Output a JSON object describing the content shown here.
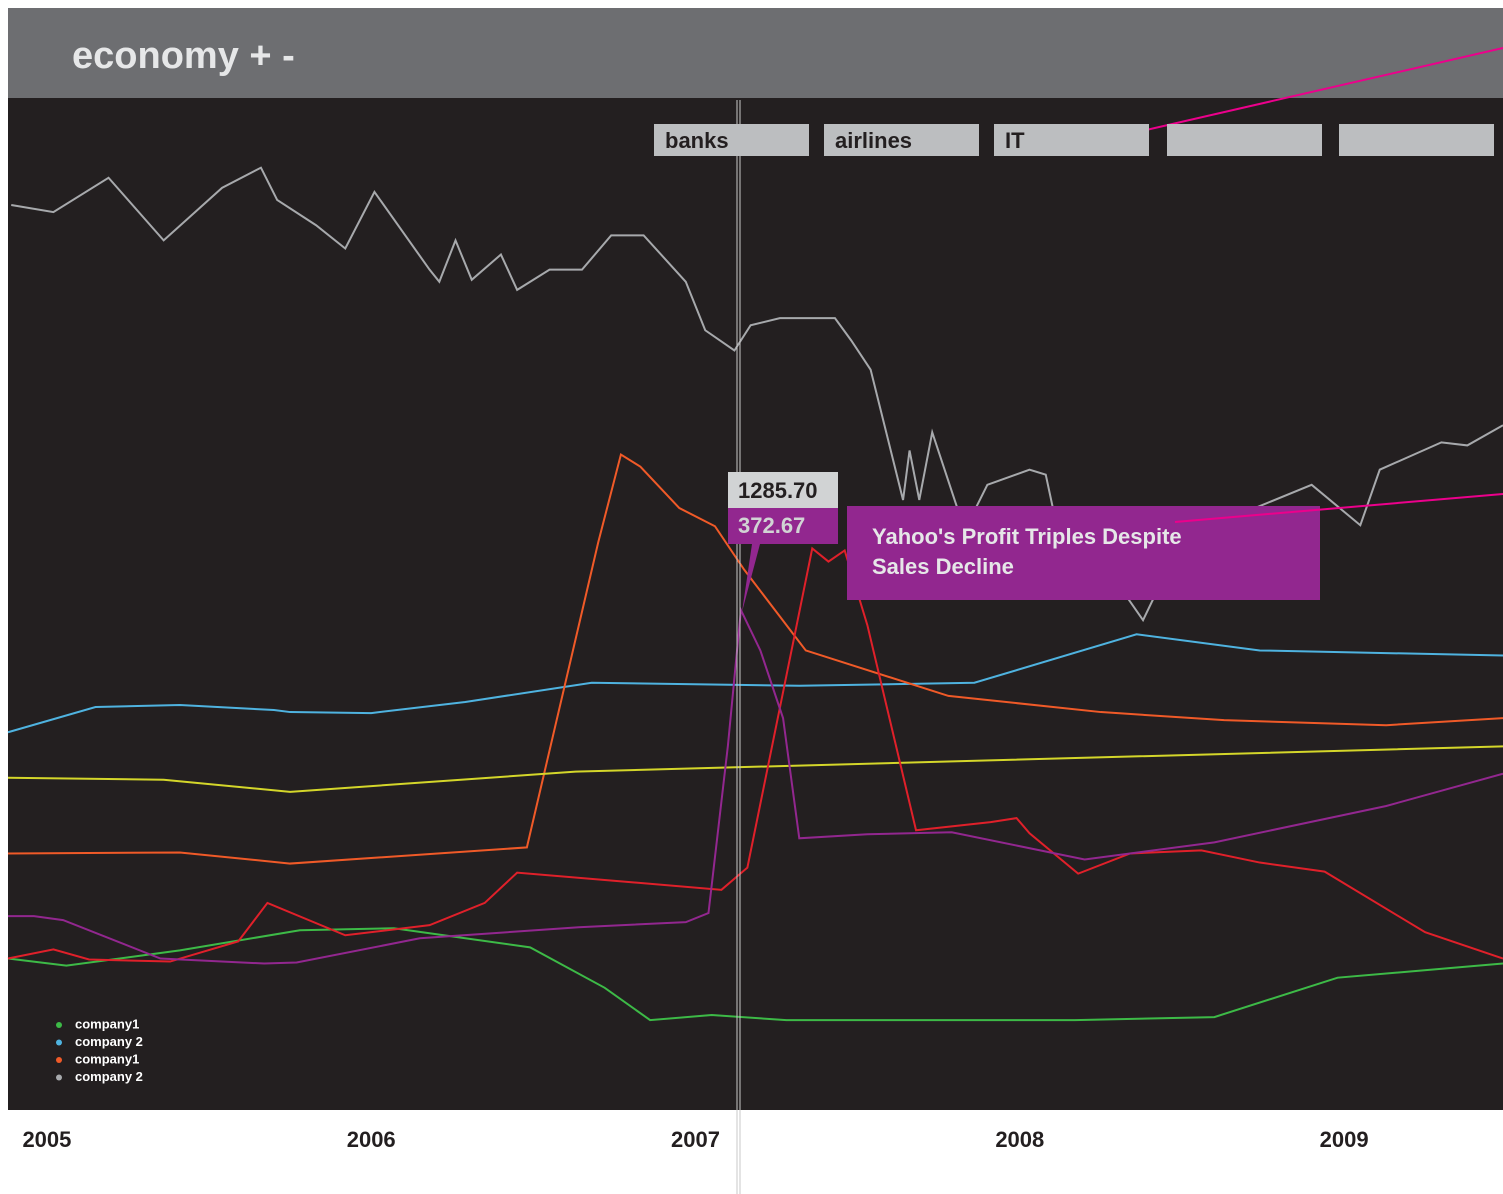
{
  "header": {
    "title": "economy + -"
  },
  "tabs": [
    "banks",
    "airlines",
    "IT",
    "",
    ""
  ],
  "readouts": [
    "1285.70",
    "372.67"
  ],
  "chart_data": {
    "type": "line",
    "annotations": [
      "Yahoo's Profit Triples Despite Sales Decline"
    ],
    "xlim": [
      2004.88,
      2009.49
    ],
    "xticks": [
      2005,
      2006,
      2007,
      2008,
      2009
    ],
    "ylim": [
      0,
      100
    ],
    "grid": false,
    "legend": "bottom-left",
    "series": [
      {
        "name": "company1",
        "color": "#3dba47",
        "x": [
          2004.88,
          2005.06,
          2005.41,
          2005.78,
          2006.07,
          2006.49,
          2006.72,
          2006.86,
          2007.05,
          2007.28,
          2008.17,
          2008.6,
          2008.98,
          2009.49
        ],
        "values": [
          15.0,
          14.3,
          15.8,
          17.8,
          18.0,
          16.1,
          12.1,
          8.9,
          9.4,
          8.9,
          8.9,
          9.2,
          13.1,
          14.5
        ]
      },
      {
        "name": "company 2",
        "color": "#4fb3e0",
        "x": [
          2004.88,
          2005.15,
          2005.41,
          2005.7,
          2005.75,
          2006.0,
          2006.29,
          2006.68,
          2007.32,
          2007.86,
          2008.36,
          2008.74,
          2009.49
        ],
        "values": [
          37.4,
          39.9,
          40.1,
          39.6,
          39.4,
          39.3,
          40.4,
          42.3,
          42.0,
          42.3,
          47.1,
          45.5,
          45.0
        ]
      },
      {
        "name": "company1",
        "color": "#f05a28",
        "x": [
          2004.88,
          2005.41,
          2005.75,
          2006.48,
          2006.7,
          2006.77,
          2006.83,
          2006.95,
          2007.06,
          2007.15,
          2007.34,
          2007.78,
          2008.25,
          2008.63,
          2009.13,
          2009.49
        ],
        "values": [
          25.4,
          25.5,
          24.4,
          26.0,
          56.2,
          64.9,
          63.7,
          59.6,
          57.8,
          53.5,
          45.5,
          41.0,
          39.4,
          38.6,
          38.1,
          38.8
        ]
      },
      {
        "name": "company 2",
        "color": "#a7a9ac",
        "x": [
          2004.89,
          2005.02,
          2005.19,
          2005.36,
          2005.54,
          2005.66,
          2005.71,
          2005.83,
          2005.92,
          2006.01,
          2006.18,
          2006.21,
          2006.26,
          2006.31,
          2006.4,
          2006.45,
          2006.55,
          2006.65,
          2006.74,
          2006.84,
          2006.97,
          2007.03,
          2007.12,
          2007.17,
          2007.26,
          2007.43,
          2007.48,
          2007.54,
          2007.64,
          2007.66,
          2007.69,
          2007.73,
          2007.83,
          2007.9,
          2008.03,
          2008.08,
          2008.13,
          2008.25,
          2008.38,
          2008.47,
          2008.71,
          2008.9,
          2009.05,
          2009.11,
          2009.3,
          2009.38,
          2009.49
        ],
        "values": [
          89.6,
          88.9,
          92.3,
          86.1,
          91.3,
          93.3,
          90.1,
          87.6,
          85.3,
          90.9,
          83.2,
          82.0,
          86.1,
          82.2,
          84.7,
          81.2,
          83.2,
          83.2,
          86.6,
          86.6,
          82.0,
          77.2,
          75.2,
          77.7,
          78.4,
          78.4,
          76.2,
          73.3,
          60.4,
          65.3,
          60.4,
          67.1,
          57.4,
          61.9,
          63.4,
          62.9,
          55.4,
          54.5,
          48.5,
          54.5,
          59.4,
          61.9,
          57.9,
          63.4,
          66.1,
          65.8,
          67.8
        ]
      },
      {
        "color": "#d4d62a",
        "x": [
          2004.88,
          2005.36,
          2005.75,
          2006.63,
          2009.49
        ],
        "values": [
          32.9,
          32.7,
          31.5,
          33.5,
          36.0
        ]
      },
      {
        "color": "#e0202a",
        "x": [
          2004.88,
          2005.02,
          2005.13,
          2005.38,
          2005.59,
          2005.68,
          2005.92,
          2006.18,
          2006.35,
          2006.45,
          2007.08,
          2007.16,
          2007.36,
          2007.41,
          2007.46,
          2007.53,
          2007.68,
          2007.91,
          2007.99,
          2008.03,
          2008.18,
          2008.34,
          2008.56,
          2008.74,
          2008.94,
          2009.25,
          2009.49
        ],
        "values": [
          15.0,
          15.9,
          14.9,
          14.7,
          16.7,
          20.5,
          17.3,
          18.3,
          20.5,
          23.5,
          21.8,
          24.0,
          55.6,
          54.3,
          55.4,
          48.0,
          27.7,
          28.5,
          28.9,
          27.4,
          23.4,
          25.4,
          25.7,
          24.5,
          23.6,
          17.6,
          15.0
        ]
      },
      {
        "color": "#92278f",
        "x": [
          2004.88,
          2004.96,
          2005.05,
          2005.35,
          2005.67,
          2005.77,
          2006.15,
          2006.64,
          2006.97,
          2007.04,
          2007.1,
          2007.14,
          2007.2,
          2007.27,
          2007.32,
          2007.53,
          2007.79,
          2008.2,
          2008.6,
          2009.13,
          2009.49
        ],
        "values": [
          19.2,
          19.2,
          18.8,
          15.0,
          14.5,
          14.6,
          17.0,
          18.1,
          18.6,
          19.5,
          36.1,
          49.5,
          45.5,
          38.8,
          26.9,
          27.3,
          27.5,
          24.8,
          26.5,
          30.1,
          33.3
        ]
      }
    ]
  }
}
